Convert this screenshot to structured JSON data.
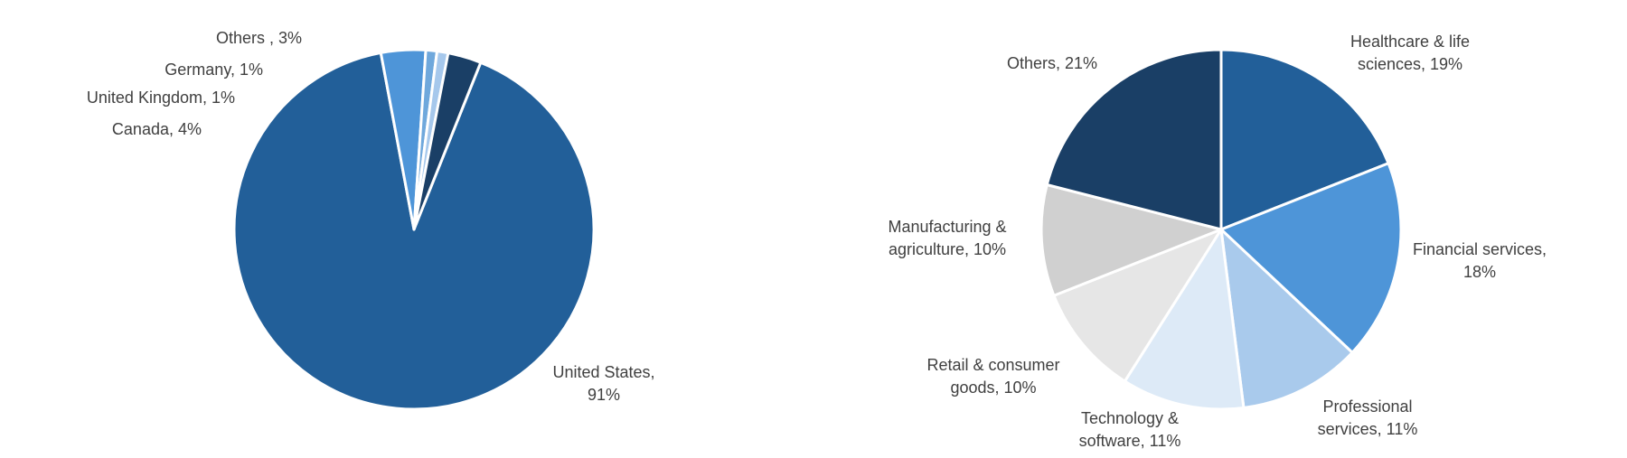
{
  "chart_data": [
    {
      "type": "pie",
      "title": "",
      "slices": [
        {
          "name": "United States",
          "value": 91,
          "label_lines": [
            "United States,",
            "91%"
          ],
          "color": "#225F99"
        },
        {
          "name": "Canada",
          "value": 4,
          "label_lines": [
            "Canada, 4%"
          ],
          "color": "#4E95D8"
        },
        {
          "name": "United Kingdom",
          "value": 1,
          "label_lines": [
            "United Kingdom, 1%"
          ],
          "color": "#6FA8DC"
        },
        {
          "name": "Germany",
          "value": 1,
          "label_lines": [
            "Germany, 1%"
          ],
          "color": "#A6C8EC"
        },
        {
          "name": "Others",
          "value": 3,
          "label_lines": [
            "Others , 3%"
          ],
          "color": "#1A3F66"
        }
      ]
    },
    {
      "type": "pie",
      "title": "",
      "slices": [
        {
          "name": "Healthcare & life sciences",
          "value": 19,
          "label_lines": [
            "Healthcare & life",
            "sciences, 19%"
          ],
          "color": "#225F99"
        },
        {
          "name": "Financial services",
          "value": 18,
          "label_lines": [
            "Financial services,",
            "18%"
          ],
          "color": "#4E95D8"
        },
        {
          "name": "Professional services",
          "value": 11,
          "label_lines": [
            "Professional",
            "services, 11%"
          ],
          "color": "#A9CAEC"
        },
        {
          "name": "Technology & software",
          "value": 11,
          "label_lines": [
            "Technology &",
            "software, 11%"
          ],
          "color": "#DDEAF7"
        },
        {
          "name": "Retail & consumer goods",
          "value": 10,
          "label_lines": [
            "Retail & consumer",
            "goods, 10%"
          ],
          "color": "#E6E6E6"
        },
        {
          "name": "Manufacturing & agriculture",
          "value": 10,
          "label_lines": [
            "Manufacturing &",
            "agriculture, 10%"
          ],
          "color": "#D0D0D0"
        },
        {
          "name": "Others",
          "value": 21,
          "label_lines": [
            "Others, 21%"
          ],
          "color": "#1A3F66"
        }
      ]
    }
  ]
}
